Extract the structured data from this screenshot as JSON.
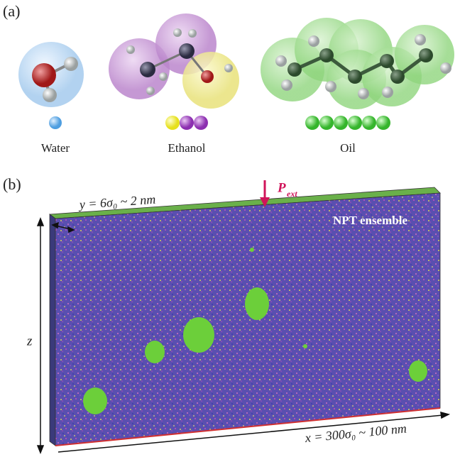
{
  "panel_a": {
    "label": "(a)",
    "molecules": [
      {
        "label": "Water"
      },
      {
        "label": "Ethanol"
      },
      {
        "label": "Oil"
      }
    ]
  },
  "panel_b": {
    "label": "(b)",
    "y_dimension": "y = 6σ₀ ~ 2 nm",
    "pressure": "P",
    "pressure_subscript": "ext",
    "ensemble": "NPT ensemble",
    "z_axis": "z",
    "x_dimension": "x = 300σ₀ ~ 100 nm"
  }
}
